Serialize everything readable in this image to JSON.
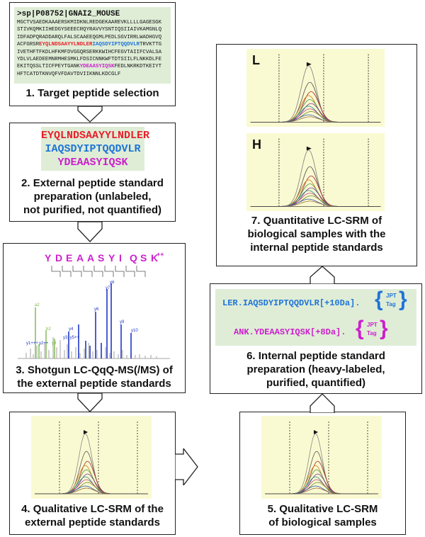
{
  "step1": {
    "header": ">sp|P08752|GNAI2_MOUSE",
    "lines": [
      {
        "a": "MGCTVSAEDKAAAERSKMIDKNLREDGEKAAREVKLLLLGAGESGK",
        "r": "",
        "b": "",
        "m": "",
        "c": ""
      },
      {
        "a": "STIVKQMKIIHEDGYSEEECRQYRAVVYSNTIQSIIAIVKAMGNLQ",
        "r": "",
        "b": "",
        "m": "",
        "c": ""
      },
      {
        "a": "IDFADPQRADDARQLFALSCAAEEQGMLPEDLSGVIRRLWADHGVQ",
        "r": "",
        "b": "",
        "m": "",
        "c": ""
      },
      {
        "a": "ACFGRSR",
        "r": "EYQLNDSAAYYLNDLER",
        "b": "IAQSDYIPTQQDVLR",
        "m": "",
        "c": "TRVKTTG"
      },
      {
        "a": "IVETHFTFKDLHFKMFDVGGQRSERKKWIHCFEGVTAIIFCVALSA",
        "r": "",
        "b": "",
        "m": "",
        "c": ""
      },
      {
        "a": "YDLVLAEDEEMNRMHESMKLFDSICNNKWFTDTSIILFLNKKDLFE",
        "r": "",
        "b": "",
        "m": "",
        "c": ""
      },
      {
        "a": "EKITQSSLTICFPEYTGANK",
        "r": "",
        "b": "",
        "m": "YDEAASYIQSK",
        "c": "FEDLNKRKDTKEIYT"
      },
      {
        "a": "HFTCATDTKNVQFVFDAVTDVIIKNNLKDCGLF",
        "r": "",
        "b": "",
        "m": "",
        "c": ""
      }
    ],
    "caption": "1. Target peptide selection"
  },
  "step2": {
    "peptides": [
      "EYQLNDSAAYYLNDLER",
      "IAQSDYIPTQQDVLR",
      "YDEAASYIQSK"
    ],
    "caption": [
      "2. External peptide standard",
      "preparation (unlabeled,",
      "not purified, not quantified)"
    ]
  },
  "step3": {
    "sequence": [
      "Y",
      "D",
      "E",
      "A",
      "A",
      "S",
      "Y",
      "I",
      "Q",
      "S",
      "K"
    ],
    "charge": "++",
    "peak_labels": [
      "y7",
      "y8",
      "y6",
      "y9",
      "y4",
      "y10",
      "y3, y5++",
      "y1+++",
      "y2++",
      "a2",
      "b2",
      "y9"
    ],
    "caption": [
      "3. Shotgun LC-QqQ-MS(/MS) of",
      "the external peptide standards"
    ]
  },
  "step4": {
    "caption": [
      "4. Qualitative LC-SRM of the",
      "external peptide standards"
    ]
  },
  "step5": {
    "caption": [
      "5. Qualitative LC-SRM",
      "of biological samples"
    ]
  },
  "step6": {
    "line1_prefix": "LER.",
    "line1_peptide": "IAQSDYIPTQQDVLR[+10Da].",
    "line2_prefix": "ANK.",
    "line2_peptide": "YDEAASYIQSK[+8Da].",
    "tag_top": "JPT",
    "tag_bottom": "Tag",
    "caption": [
      "6. Internal peptide standard",
      "preparation (heavy-labeled,",
      "purified, quantified)"
    ]
  },
  "step7": {
    "panel_light": "L",
    "panel_heavy": "H",
    "caption": [
      "7. Quantitative LC-SRM of",
      "biological samples with the",
      "internal peptide standards"
    ]
  },
  "colors": {
    "red": "#e8202a",
    "blue": "#1f74d6",
    "magenta": "#cc1fcc",
    "green_bg": "#dfedd7",
    "chrom_bg": "#fafad2"
  }
}
